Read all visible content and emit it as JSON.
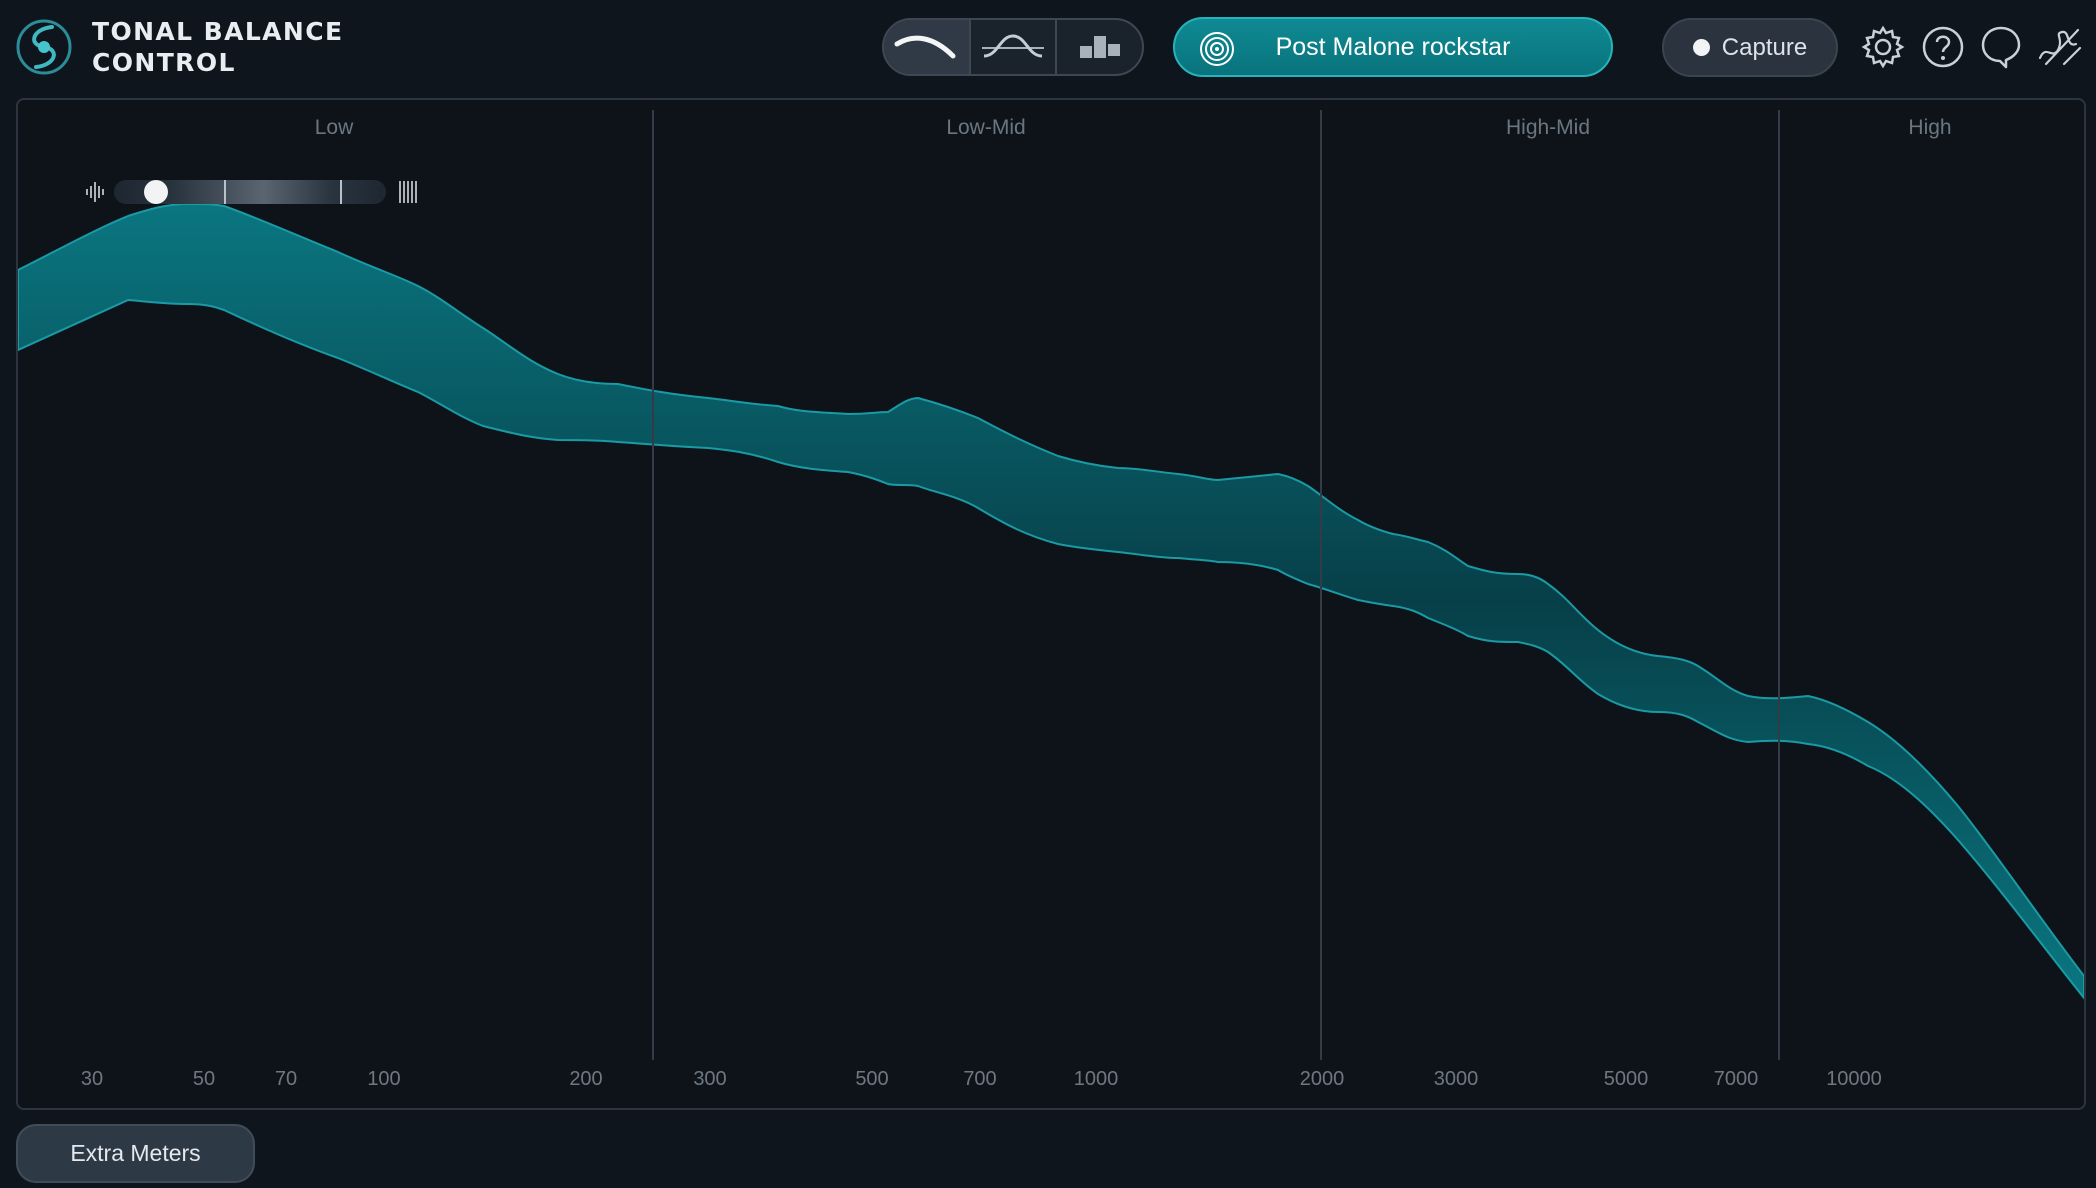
{
  "app": {
    "title_line1": "TONAL BALANCE",
    "title_line2": "CONTROL"
  },
  "view_modes": [
    {
      "name": "broadband-view",
      "icon": "curve-icon",
      "active": true
    },
    {
      "name": "fine-view",
      "icon": "wave-curve-icon",
      "active": false
    },
    {
      "name": "band-view",
      "icon": "blocks-icon",
      "active": false
    }
  ],
  "target": {
    "label": "Post Malone rockstar",
    "icon": "target-icon",
    "color": "#0b7f88"
  },
  "toolbar": {
    "capture_label": "Capture",
    "icons": [
      "gear-icon",
      "help-icon",
      "speech-bubble-icon",
      "signature-icon"
    ]
  },
  "bands": [
    {
      "label": "Low"
    },
    {
      "label": "Low-Mid"
    },
    {
      "label": "High-Mid"
    },
    {
      "label": "High"
    }
  ],
  "frequency_ticks": [
    "30",
    "50",
    "70",
    "100",
    "200",
    "300",
    "500",
    "700",
    "1000",
    "2000",
    "3000",
    "5000",
    "7000",
    "10000"
  ],
  "crest_slider": {
    "left_icon": "transient-icon",
    "right_icon": "dense-bars-icon",
    "value": 0
  },
  "curve": {
    "color": "#0b6a75",
    "edge_color": "#1a9aa4"
  },
  "footer": {
    "extra_meters_label": "Extra Meters"
  }
}
